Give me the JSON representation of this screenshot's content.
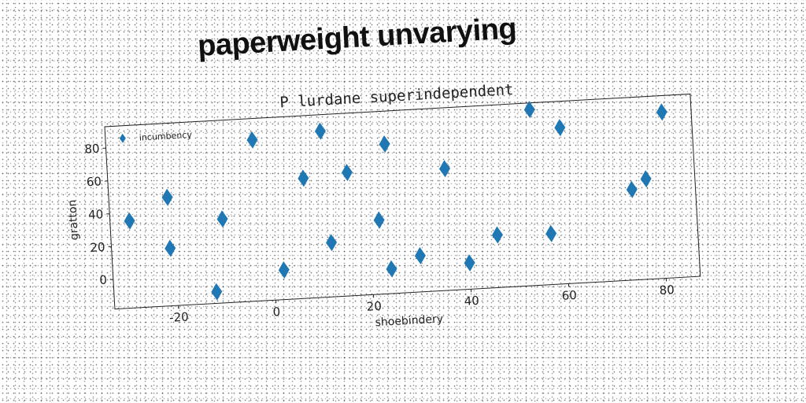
{
  "headline": "paperweight unvarying",
  "chart_data": {
    "type": "scatter",
    "title": "P lurdane superindependent",
    "xlabel": "shoebindery",
    "ylabel": "gratton",
    "xlim": [
      -33,
      87
    ],
    "ylim": [
      -18,
      93
    ],
    "xticks": [
      -20,
      0,
      20,
      40,
      60,
      80
    ],
    "yticks": [
      0,
      20,
      40,
      60,
      80
    ],
    "marker": "diamond",
    "color": "#1f77b4",
    "legend_position": "top-left",
    "grid": false,
    "series": [
      {
        "name": "incumbency",
        "x": [
          -29,
          -21,
          -21,
          -12,
          -10,
          -3,
          2,
          7,
          11,
          12,
          16,
          22,
          24,
          24,
          30,
          36,
          40,
          46,
          54,
          57,
          60,
          74,
          77,
          81
        ],
        "y": [
          35,
          17,
          48,
          -11,
          33,
          80,
          0,
          55,
          83,
          15,
          57,
          27,
          -3,
          73,
          4,
          56,
          -2,
          14,
          89,
          13,
          77,
          37,
          43,
          83
        ]
      }
    ]
  }
}
